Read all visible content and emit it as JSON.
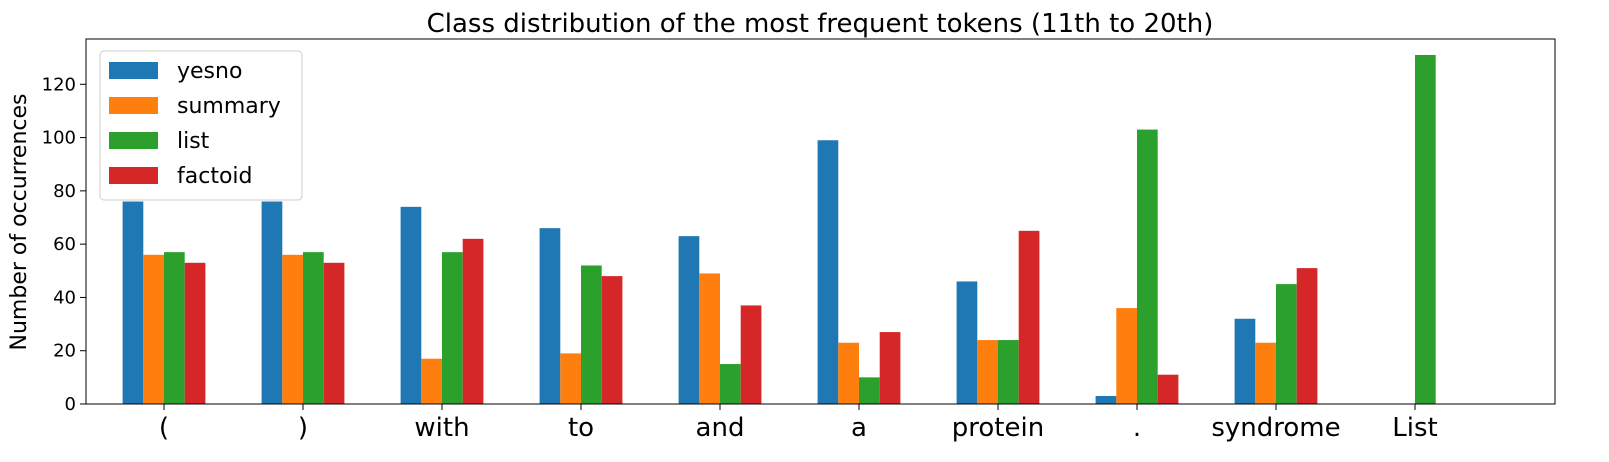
{
  "chart_data": {
    "type": "bar",
    "title": "Class distribution of the most frequent tokens (11th to 20th)",
    "xlabel": "",
    "ylabel": "Number of occurrences",
    "categories": [
      "(",
      ")",
      "with",
      "to",
      "and",
      "a",
      "protein",
      ".",
      "syndrome",
      "List"
    ],
    "series": [
      {
        "name": "yesno",
        "color": "#1f77b4",
        "values": [
          76,
          76,
          74,
          66,
          63,
          99,
          46,
          3,
          32,
          0
        ]
      },
      {
        "name": "summary",
        "color": "#ff7f0e",
        "values": [
          56,
          56,
          17,
          19,
          49,
          23,
          24,
          36,
          23,
          0
        ]
      },
      {
        "name": "list",
        "color": "#2ca02c",
        "values": [
          57,
          57,
          57,
          52,
          15,
          10,
          24,
          103,
          45,
          131
        ]
      },
      {
        "name": "factoid",
        "color": "#d62728",
        "values": [
          53,
          53,
          62,
          48,
          37,
          27,
          65,
          11,
          51,
          0
        ]
      }
    ],
    "ylim": [
      0,
      137
    ],
    "yticks": [
      0,
      20,
      40,
      60,
      80,
      100,
      120
    ],
    "grid": false,
    "legend_position": "top-left"
  }
}
